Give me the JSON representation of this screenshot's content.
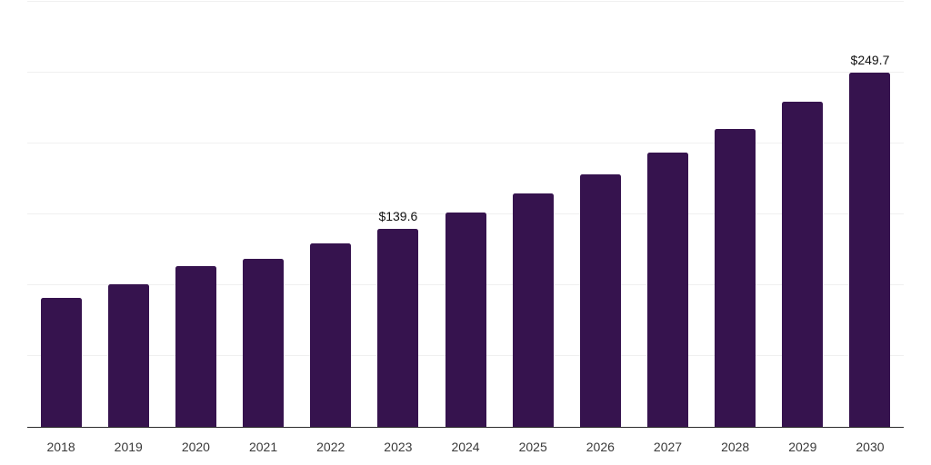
{
  "chart_data": {
    "type": "bar",
    "title": "",
    "xlabel": "",
    "ylabel": "",
    "categories": [
      "2018",
      "2019",
      "2020",
      "2021",
      "2022",
      "2023",
      "2024",
      "2025",
      "2026",
      "2027",
      "2028",
      "2029",
      "2030"
    ],
    "values": [
      91.1,
      100.7,
      113.3,
      118.7,
      129.3,
      139.6,
      151.3,
      164.5,
      178.5,
      193.4,
      210.4,
      229.4,
      249.7
    ],
    "data_labels": [
      {
        "category": "2023",
        "text": "$139.6"
      },
      {
        "category": "2030",
        "text": "$249.7"
      }
    ],
    "ylim": [
      0,
      300
    ],
    "grid_interval": 50,
    "grid": true,
    "legend": false,
    "colors": {
      "bar": "#36134E",
      "gridline": "#f0f0f0",
      "axis_line": "#2b2b2b",
      "x_tick_label": "#3a3a3a",
      "data_label": "#111111",
      "background": "#ffffff"
    }
  }
}
